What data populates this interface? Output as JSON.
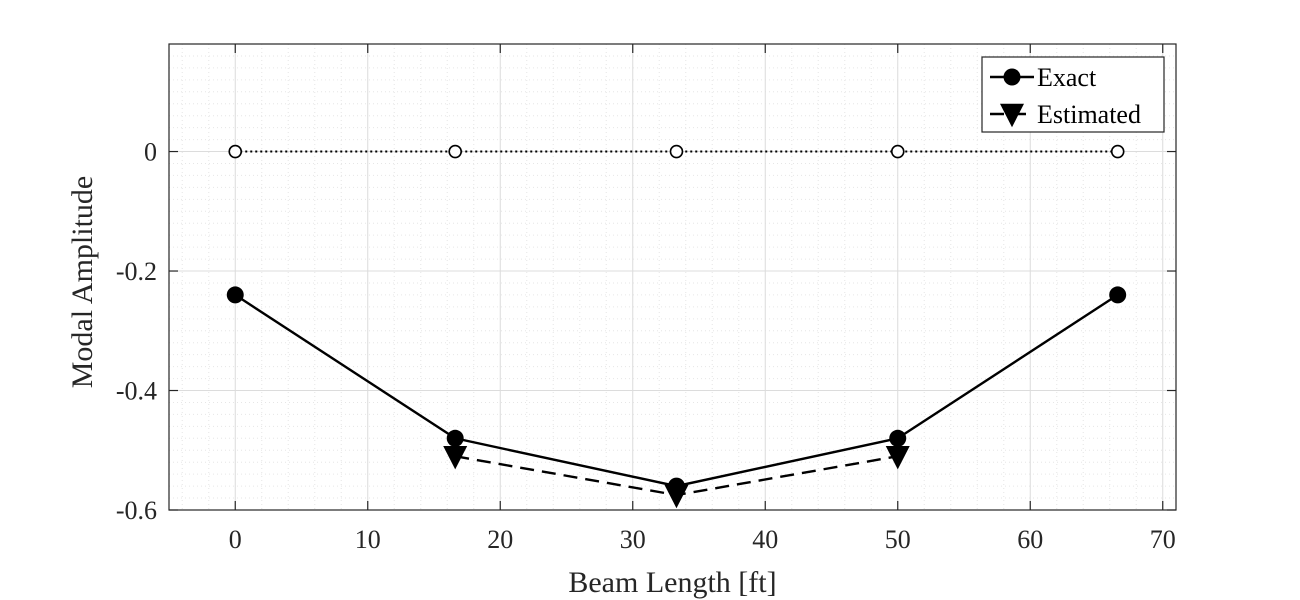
{
  "chart_data": {
    "type": "line",
    "xlabel": "Beam Length [ft]",
    "ylabel": "Modal Amplitude",
    "xlim": [
      -5,
      71
    ],
    "ylim": [
      -0.6,
      0.18
    ],
    "xticks": [
      0,
      10,
      20,
      30,
      40,
      50,
      60,
      70
    ],
    "yticks": [
      0,
      -0.2,
      -0.4,
      -0.6
    ],
    "xtick_labels": [
      "0",
      "10",
      "20",
      "30",
      "40",
      "50",
      "60",
      "70"
    ],
    "ytick_labels": [
      "0",
      "-0.2",
      "-0.4",
      "-0.6"
    ],
    "grid": true,
    "minor_grid": true,
    "legend_position": "top-right",
    "series": [
      {
        "name": "Exact",
        "line_style": "solid",
        "marker": "filled-circle",
        "color": "#000000",
        "x": [
          0,
          16.6,
          33.3,
          50,
          66.6
        ],
        "y": [
          -0.24,
          -0.48,
          -0.56,
          -0.48,
          -0.24
        ]
      },
      {
        "name": "Estimated",
        "line_style": "dashed",
        "marker": "filled-triangle-down",
        "color": "#000000",
        "x": [
          16.6,
          33.3,
          50
        ],
        "y": [
          -0.51,
          -0.575,
          -0.51
        ]
      },
      {
        "line_style": "dotted",
        "marker": "open-circle",
        "color": "#000000",
        "x": [
          0,
          16.6,
          33.3,
          50,
          66.6
        ],
        "y": [
          0,
          0,
          0,
          0,
          0
        ]
      }
    ]
  }
}
